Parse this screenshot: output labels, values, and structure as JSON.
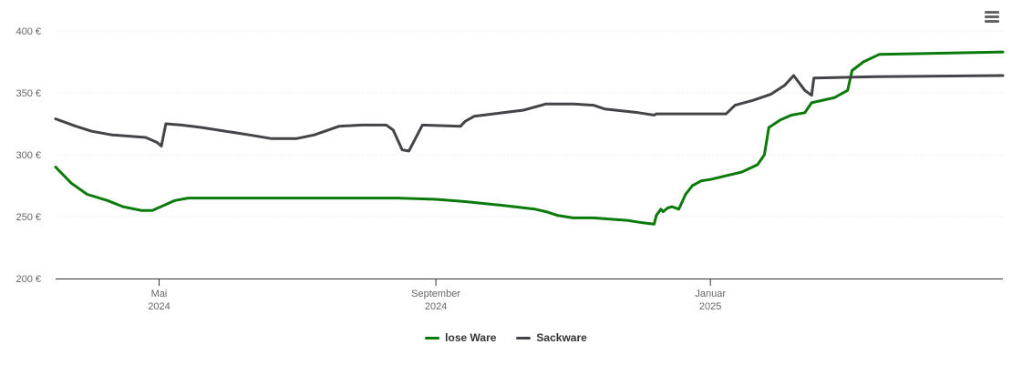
{
  "chart_data": {
    "type": "line",
    "yaxis": {
      "ticks": [
        200,
        250,
        300,
        350,
        400
      ],
      "tick_labels": [
        "200 €",
        "250 €",
        "300 €",
        "350 €",
        "400 €"
      ],
      "min": 200,
      "max": 400
    },
    "xaxis": {
      "range": [
        "2024-03-16",
        "2025-05-11"
      ],
      "ticks": [
        {
          "date": "2024-05-01",
          "label": "Mai",
          "year": "2024"
        },
        {
          "date": "2024-09-01",
          "label": "September",
          "year": "2024"
        },
        {
          "date": "2025-01-01",
          "label": "Januar",
          "year": "2025"
        }
      ]
    },
    "grid": true,
    "legend_placement": "bottom-center",
    "series": [
      {
        "name": "lose Ware",
        "color": "#0a7a0a",
        "points": [
          [
            "2024-03-16",
            290
          ],
          [
            "2024-03-23",
            277
          ],
          [
            "2024-03-30",
            268
          ],
          [
            "2024-04-08",
            263
          ],
          [
            "2024-04-15",
            258
          ],
          [
            "2024-04-23",
            255
          ],
          [
            "2024-04-28",
            255
          ],
          [
            "2024-05-03",
            259
          ],
          [
            "2024-05-08",
            263
          ],
          [
            "2024-05-14",
            265
          ],
          [
            "2024-06-15",
            265
          ],
          [
            "2024-07-15",
            265
          ],
          [
            "2024-08-15",
            265
          ],
          [
            "2024-09-01",
            264
          ],
          [
            "2024-09-15",
            262
          ],
          [
            "2024-10-01",
            259
          ],
          [
            "2024-10-15",
            256
          ],
          [
            "2024-10-20",
            254
          ],
          [
            "2024-10-25",
            251
          ],
          [
            "2024-11-01",
            249
          ],
          [
            "2024-11-10",
            249
          ],
          [
            "2024-11-25",
            247
          ],
          [
            "2024-12-02",
            245
          ],
          [
            "2024-12-07",
            244
          ],
          [
            "2024-12-08",
            251
          ],
          [
            "2024-12-10",
            256
          ],
          [
            "2024-12-11",
            254
          ],
          [
            "2024-12-13",
            257
          ],
          [
            "2024-12-15",
            258
          ],
          [
            "2024-12-18",
            256
          ],
          [
            "2024-12-21",
            268
          ],
          [
            "2024-12-24",
            275
          ],
          [
            "2024-12-26",
            277
          ],
          [
            "2024-12-28",
            279
          ],
          [
            "2025-01-01",
            280
          ],
          [
            "2025-01-08",
            283
          ],
          [
            "2025-01-15",
            286
          ],
          [
            "2025-01-22",
            292
          ],
          [
            "2025-01-25",
            300
          ],
          [
            "2025-01-27",
            322
          ],
          [
            "2025-02-01",
            328
          ],
          [
            "2025-02-06",
            332
          ],
          [
            "2025-02-12",
            334
          ],
          [
            "2025-02-15",
            342
          ],
          [
            "2025-02-25",
            346
          ],
          [
            "2025-03-03",
            352
          ],
          [
            "2025-03-05",
            368
          ],
          [
            "2025-03-10",
            375
          ],
          [
            "2025-03-17",
            381
          ],
          [
            "2025-05-11",
            383
          ]
        ]
      },
      {
        "name": "Sackware",
        "color": "#434348",
        "points": [
          [
            "2024-03-16",
            329
          ],
          [
            "2024-03-25",
            323
          ],
          [
            "2024-04-01",
            319
          ],
          [
            "2024-04-10",
            316
          ],
          [
            "2024-04-25",
            314
          ],
          [
            "2024-04-30",
            310
          ],
          [
            "2024-05-02",
            307
          ],
          [
            "2024-05-04",
            325
          ],
          [
            "2024-05-11",
            324
          ],
          [
            "2024-05-20",
            322
          ],
          [
            "2024-06-10",
            316
          ],
          [
            "2024-06-20",
            313
          ],
          [
            "2024-07-01",
            313
          ],
          [
            "2024-07-09",
            316
          ],
          [
            "2024-07-20",
            323
          ],
          [
            "2024-07-30",
            324
          ],
          [
            "2024-08-10",
            324
          ],
          [
            "2024-08-13",
            320
          ],
          [
            "2024-08-17",
            304
          ],
          [
            "2024-08-20",
            303
          ],
          [
            "2024-08-26",
            324
          ],
          [
            "2024-09-12",
            323
          ],
          [
            "2024-09-14",
            327
          ],
          [
            "2024-09-18",
            331
          ],
          [
            "2024-10-01",
            334
          ],
          [
            "2024-10-10",
            336
          ],
          [
            "2024-10-20",
            341
          ],
          [
            "2024-11-01",
            341
          ],
          [
            "2024-11-10",
            340
          ],
          [
            "2024-11-15",
            337
          ],
          [
            "2024-11-30",
            334
          ],
          [
            "2024-12-07",
            332
          ],
          [
            "2024-12-08",
            333
          ],
          [
            "2024-12-31",
            333
          ],
          [
            "2025-01-08",
            333
          ],
          [
            "2025-01-12",
            340
          ],
          [
            "2025-01-20",
            344
          ],
          [
            "2025-01-28",
            349
          ],
          [
            "2025-02-03",
            356
          ],
          [
            "2025-02-07",
            364
          ],
          [
            "2025-02-12",
            352
          ],
          [
            "2025-02-15",
            348
          ],
          [
            "2025-02-16",
            362
          ],
          [
            "2025-03-15",
            363
          ],
          [
            "2025-05-11",
            364
          ]
        ]
      }
    ]
  }
}
